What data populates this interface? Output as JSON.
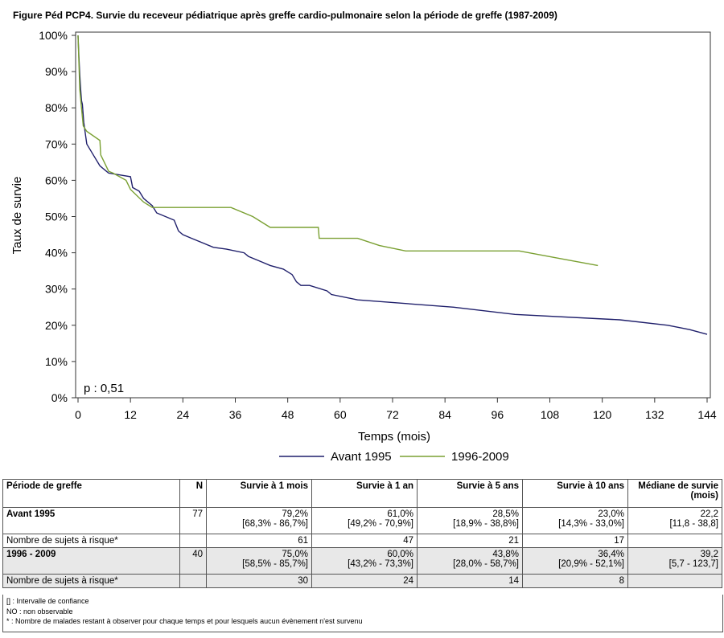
{
  "title": "Figure Péd PCP4. Survie du receveur pédiatrique après greffe cardio-pulmonaire selon la période de greffe (1987-2009)",
  "chart_data": {
    "type": "line",
    "xlabel": "Temps (mois)",
    "ylabel": "Taux de survie",
    "xlim": [
      0,
      144
    ],
    "ylim": [
      0,
      100
    ],
    "xticks": [
      0,
      12,
      24,
      36,
      48,
      60,
      72,
      84,
      96,
      108,
      120,
      132,
      144
    ],
    "yticks": [
      "0%",
      "10%",
      "20%",
      "30%",
      "40%",
      "50%",
      "60%",
      "70%",
      "80%",
      "90%",
      "100%"
    ],
    "annotation": "p : 0,51",
    "legend_position": "bottom",
    "series": [
      {
        "name": "Avant 1995",
        "color": "#1f1f6b",
        "points": [
          [
            0,
            100
          ],
          [
            0.2,
            94
          ],
          [
            0.4,
            89
          ],
          [
            0.6,
            85
          ],
          [
            0.8,
            82
          ],
          [
            1,
            81
          ],
          [
            1.3,
            76
          ],
          [
            2,
            70
          ],
          [
            3,
            68
          ],
          [
            4,
            66
          ],
          [
            5,
            64
          ],
          [
            6,
            63
          ],
          [
            7,
            62
          ],
          [
            12,
            61
          ],
          [
            12.5,
            58
          ],
          [
            14,
            57
          ],
          [
            15,
            55
          ],
          [
            17,
            53
          ],
          [
            18,
            51
          ],
          [
            22,
            49
          ],
          [
            23,
            46
          ],
          [
            24,
            45
          ],
          [
            26,
            44
          ],
          [
            31,
            41.5
          ],
          [
            34,
            41
          ],
          [
            38,
            40
          ],
          [
            39,
            39
          ],
          [
            42,
            37.5
          ],
          [
            44,
            36.5
          ],
          [
            47,
            35.5
          ],
          [
            49,
            34
          ],
          [
            50,
            32
          ],
          [
            51,
            31
          ],
          [
            53,
            31
          ],
          [
            57,
            29.5
          ],
          [
            58,
            28.5
          ],
          [
            64,
            27
          ],
          [
            86,
            25
          ],
          [
            100,
            23
          ],
          [
            124,
            21.5
          ],
          [
            135,
            20
          ],
          [
            140,
            18.8
          ],
          [
            144,
            17.5
          ]
        ]
      },
      {
        "name": "1996-2009",
        "color": "#7aa032",
        "points": [
          [
            0,
            100
          ],
          [
            0.4,
            85
          ],
          [
            0.8,
            80
          ],
          [
            1.2,
            75
          ],
          [
            2,
            73.5
          ],
          [
            5,
            71
          ],
          [
            5.2,
            67
          ],
          [
            6,
            65
          ],
          [
            7,
            62.5
          ],
          [
            8,
            62
          ],
          [
            11,
            60
          ],
          [
            12,
            57.5
          ],
          [
            15,
            54
          ],
          [
            17,
            52.5
          ],
          [
            35,
            52.5
          ],
          [
            40,
            50
          ],
          [
            44,
            47
          ],
          [
            55,
            47
          ],
          [
            55.2,
            44
          ],
          [
            64,
            44
          ],
          [
            69,
            42
          ],
          [
            75,
            40.5
          ],
          [
            101,
            40.5
          ],
          [
            110,
            38.5
          ],
          [
            119,
            36.5
          ]
        ]
      }
    ]
  },
  "table": {
    "headers": [
      "Période de greffe",
      "N",
      "Survie à 1 mois",
      "Survie à 1 an",
      "Survie à 5 ans",
      "Survie à 10 ans",
      "Médiane de survie (mois)"
    ],
    "rows": [
      {
        "label": "Avant 1995",
        "n": "77",
        "values": [
          "79,2%",
          "61,0%",
          "28,5%",
          "23,0%",
          "22,2"
        ],
        "ci": [
          "[68,3% - 86,7%]",
          "[49,2% - 70,9%]",
          "[18,9% - 38,8%]",
          "[14,3% - 33,0%]",
          "[11,8 - 38,8]"
        ],
        "risk_label": "Nombre de sujets à risque*",
        "risk": [
          "61",
          "47",
          "21",
          "17",
          ""
        ]
      },
      {
        "label": "1996 - 2009",
        "n": "40",
        "values": [
          "75,0%",
          "60,0%",
          "43,8%",
          "36,4%",
          "39,2"
        ],
        "ci": [
          "[58,5% - 85,7%]",
          "[43,2% - 73,3%]",
          "[28,0% - 58,7%]",
          "[20,9% - 52,1%]",
          "[5,7 - 123,7]"
        ],
        "risk_label": "Nombre de sujets à risque*",
        "risk": [
          "30",
          "24",
          "14",
          "8",
          ""
        ]
      }
    ]
  },
  "notes": [
    "[] : Intervalle de confiance",
    "NO : non observable",
    "* : Nombre de malades restant à observer pour chaque temps et pour lesquels aucun évènement n'est survenu"
  ]
}
